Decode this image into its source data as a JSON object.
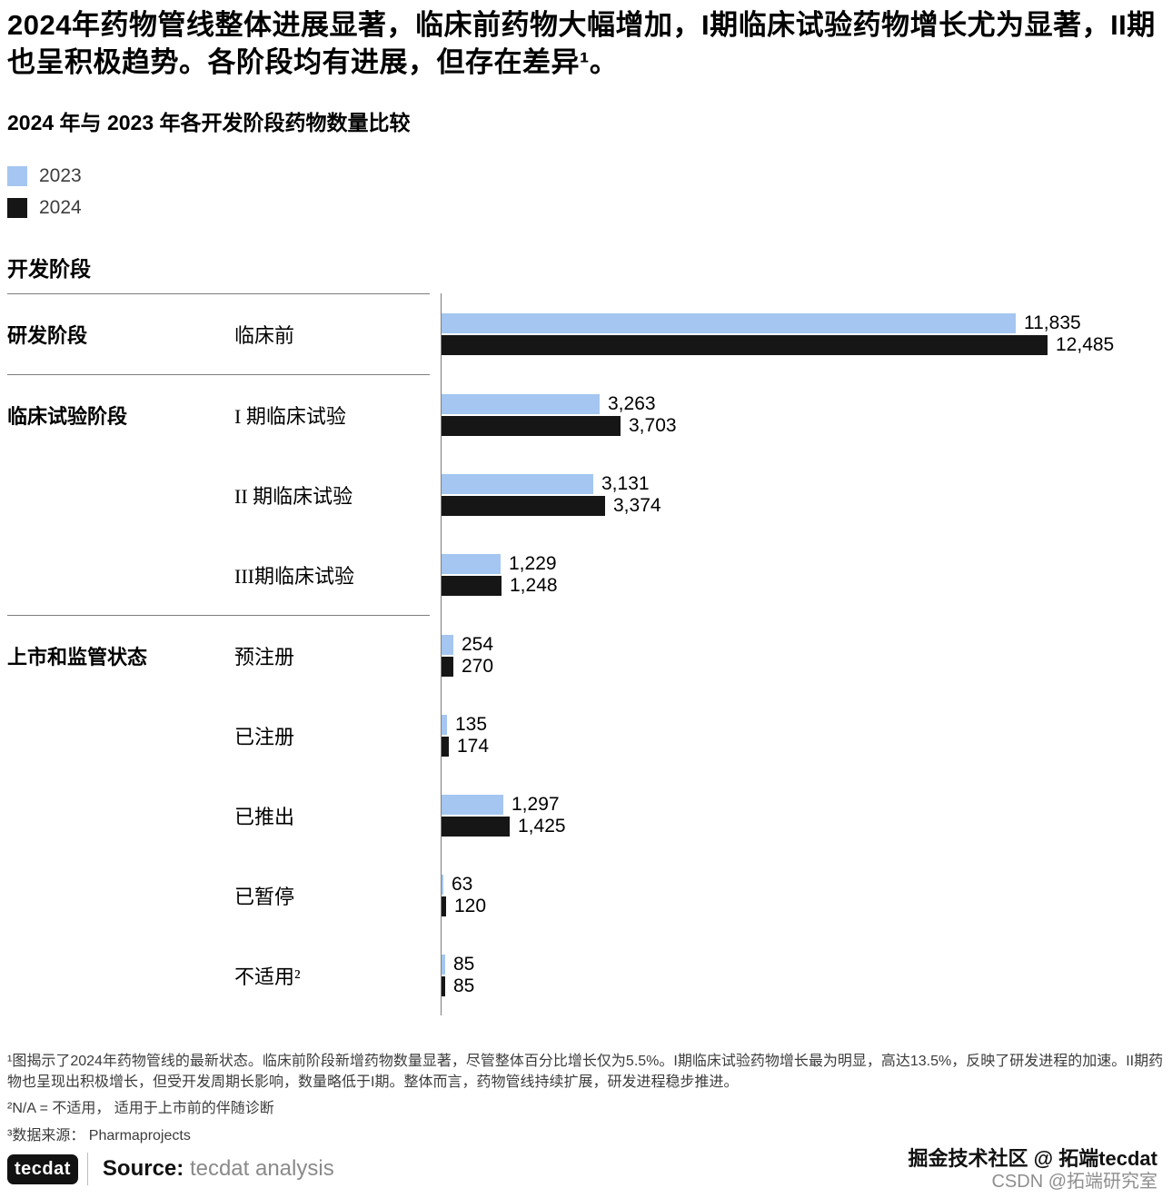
{
  "header": {
    "title": "2024年药物管线整体进展显著，临床前药物大幅增加，I期临床试验药物增长尤为显著，II期也呈积极趋势。各阶段均有进展，但存在差异¹。",
    "subtitle": "2024 年与 2023 年各开发阶段药物数量比较"
  },
  "chart_data": {
    "type": "bar",
    "orientation": "horizontal",
    "title": "2024 年与 2023 年各开发阶段药物数量比较",
    "axis_section_label": "开发阶段",
    "legend_position": "top-left",
    "grid": false,
    "xmax": 12485,
    "series": [
      {
        "name": "2023",
        "color": "#a4c6f1"
      },
      {
        "name": "2024",
        "color": "#161616"
      }
    ],
    "groups": [
      {
        "label": "研发阶段",
        "rows": [
          {
            "category": "临床前",
            "values": [
              11835,
              12485
            ],
            "labels": [
              "11,835",
              "12,485"
            ]
          }
        ]
      },
      {
        "label": "临床试验阶段",
        "rows": [
          {
            "category": "I 期临床试验",
            "values": [
              3263,
              3703
            ],
            "labels": [
              "3,263",
              "3,703"
            ]
          },
          {
            "category": "II 期临床试验",
            "values": [
              3131,
              3374
            ],
            "labels": [
              "3,131",
              "3,374"
            ]
          },
          {
            "category": "III期临床试验",
            "values": [
              1229,
              1248
            ],
            "labels": [
              "1,229",
              "1,248"
            ]
          }
        ]
      },
      {
        "label": "上市和监管状态",
        "rows": [
          {
            "category": "预注册",
            "values": [
              254,
              270
            ],
            "labels": [
              "254",
              "270"
            ]
          },
          {
            "category": "已注册",
            "values": [
              135,
              174
            ],
            "labels": [
              "135",
              "174"
            ]
          },
          {
            "category": "已推出",
            "values": [
              1297,
              1425
            ],
            "labels": [
              "1,297",
              "1,425"
            ]
          },
          {
            "category": "已暂停",
            "values": [
              63,
              120
            ],
            "labels": [
              "63",
              "120"
            ]
          },
          {
            "category": "不适用²",
            "values": [
              85,
              85
            ],
            "labels": [
              "85",
              "85"
            ]
          }
        ]
      }
    ]
  },
  "footnotes": [
    "¹图揭示了2024年药物管线的最新状态。临床前阶段新增药物数量显著，尽管整体百分比增长仅为5.5%。I期临床试验药物增长最为明显，高达13.5%，反映了研发进程的加速。II期药物也呈现出积极增长，但受开发周期长影响，数量略低于I期。整体而言，药物管线持续扩展，研发进程稳步推进。",
    "²N/A = 不适用， 适用于上市前的伴随诊断",
    "³数据来源： Pharmaprojects"
  ],
  "footer": {
    "logo": "tecdat",
    "source_label": "Source:",
    "source_text": "tecdat analysis"
  },
  "watermark": {
    "line1": "掘金技术社区 @ 拓端tecdat",
    "line2": "CSDN @拓端研究室"
  }
}
